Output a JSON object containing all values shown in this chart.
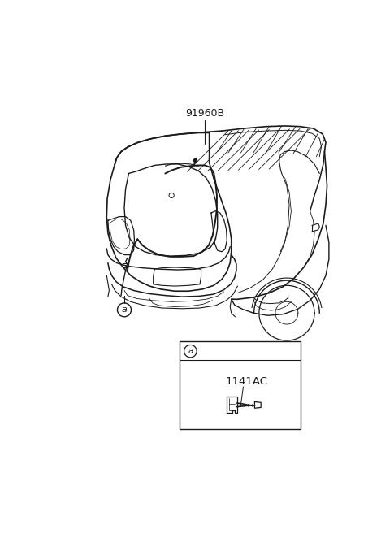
{
  "bg_color": "#ffffff",
  "line_color": "#1a1a1a",
  "label_91960B": "91960B",
  "label_a": "a",
  "label_1141AC": "1141AC",
  "fig_width": 4.8,
  "fig_height": 6.56,
  "dpi": 100
}
